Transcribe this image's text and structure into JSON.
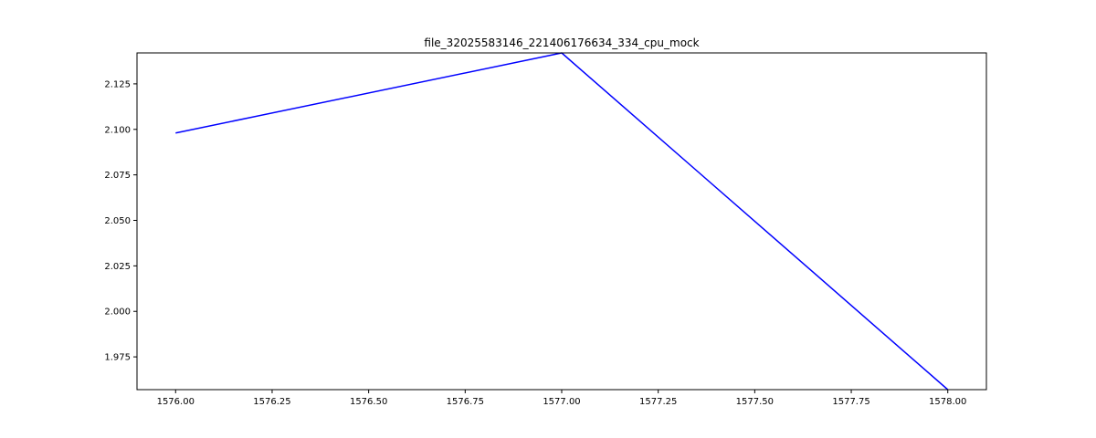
{
  "chart_data": {
    "type": "line",
    "title": "file_32025583146_221406176634_334_cpu_mock",
    "xlabel": "",
    "ylabel": "",
    "x": [
      1576.0,
      1577.0,
      1578.0
    ],
    "series": [
      {
        "values": [
          2.098,
          2.142,
          1.957
        ],
        "color": "#0000ff"
      }
    ],
    "xlim": [
      1575.9,
      1578.1
    ],
    "ylim": [
      1.957,
      2.142
    ],
    "xticks": [
      1576.0,
      1576.25,
      1576.5,
      1576.75,
      1577.0,
      1577.25,
      1577.5,
      1577.75,
      1578.0
    ],
    "xtick_labels": [
      "1576.00",
      "1576.25",
      "1576.50",
      "1576.75",
      "1577.00",
      "1577.25",
      "1577.50",
      "1577.75",
      "1578.00"
    ],
    "yticks": [
      1.975,
      2.0,
      2.025,
      2.05,
      2.075,
      2.1,
      2.125
    ],
    "ytick_labels": [
      "1.975",
      "2.000",
      "2.025",
      "2.050",
      "2.075",
      "2.100",
      "2.125"
    ],
    "grid": false,
    "legend": "none"
  }
}
